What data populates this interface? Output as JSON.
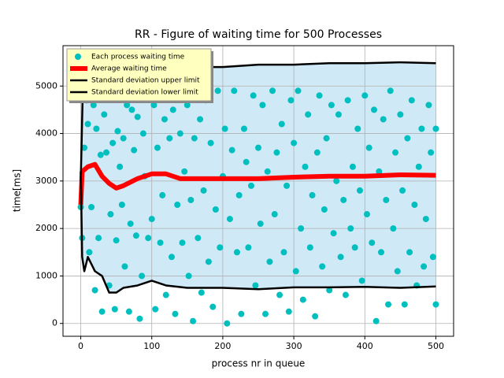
{
  "chart_data": {
    "type": "scatter",
    "title": "RR - Figure of waiting time for 500 Processes",
    "x_label": "process nr in queue",
    "y_label": "time[ms]",
    "xlim": [
      -25,
      525
    ],
    "ylim": [
      -270,
      5850
    ],
    "xticks": [
      0,
      100,
      200,
      300,
      400,
      500
    ],
    "yticks": [
      0,
      1000,
      2000,
      3000,
      4000,
      5000
    ],
    "grid": true,
    "legend": "upper left",
    "fill_color": "#cfe9f6",
    "series": [
      {
        "name": "Each process waiting time",
        "type": "scatter",
        "color": "#00bfbf",
        "x": [
          0,
          2,
          5,
          8,
          10,
          12,
          15,
          18,
          20,
          22,
          25,
          28,
          30,
          33,
          36,
          40,
          42,
          45,
          48,
          50,
          52,
          55,
          58,
          60,
          62,
          65,
          68,
          70,
          72,
          75,
          78,
          80,
          83,
          86,
          88,
          90,
          95,
          100,
          103,
          105,
          108,
          110,
          112,
          115,
          118,
          120,
          125,
          128,
          130,
          133,
          136,
          140,
          143,
          146,
          150,
          152,
          155,
          158,
          160,
          165,
          168,
          170,
          173,
          176,
          180,
          183,
          186,
          190,
          193,
          196,
          200,
          203,
          206,
          210,
          213,
          216,
          220,
          223,
          226,
          230,
          233,
          236,
          240,
          243,
          246,
          250,
          253,
          256,
          260,
          263,
          266,
          270,
          273,
          276,
          280,
          283,
          286,
          290,
          293,
          296,
          300,
          303,
          306,
          310,
          313,
          316,
          320,
          323,
          326,
          330,
          333,
          336,
          340,
          343,
          346,
          350,
          353,
          356,
          360,
          363,
          366,
          370,
          373,
          376,
          380,
          383,
          386,
          390,
          393,
          396,
          400,
          403,
          406,
          410,
          413,
          416,
          420,
          423,
          426,
          430,
          433,
          436,
          440,
          443,
          446,
          450,
          453,
          456,
          460,
          463,
          466,
          470,
          473,
          476,
          480,
          483,
          486,
          490,
          493,
          496,
          500,
          500
        ],
        "values": [
          2450,
          1800,
          3700,
          4700,
          4200,
          1500,
          2450,
          4600,
          700,
          4100,
          1800,
          3550,
          250,
          4400,
          3600,
          800,
          2300,
          3800,
          300,
          1750,
          4050,
          3300,
          2500,
          3900,
          1200,
          4600,
          250,
          2100,
          4500,
          3650,
          1850,
          4350,
          100,
          1000,
          4000,
          3100,
          1800,
          2200,
          4600,
          300,
          3700,
          4900,
          1700,
          2700,
          4300,
          600,
          3900,
          1400,
          4500,
          200,
          2500,
          4000,
          1700,
          3200,
          4600,
          1000,
          2600,
          50,
          3900,
          1800,
          4300,
          650,
          2800,
          4700,
          1300,
          3800,
          350,
          2400,
          4900,
          1600,
          3100,
          4100,
          0,
          2200,
          3650,
          4900,
          1500,
          2700,
          200,
          4100,
          3400,
          1600,
          2900,
          4800,
          800,
          3700,
          2100,
          4600,
          200,
          3200,
          1300,
          4900,
          2300,
          3600,
          600,
          4200,
          1500,
          2900,
          250,
          4700,
          3800,
          1100,
          4900,
          2000,
          500,
          3300,
          4400,
          1600,
          2700,
          150,
          3600,
          4800,
          1200,
          2400,
          3900,
          700,
          4600,
          1900,
          3000,
          4400,
          1400,
          2600,
          600,
          4700,
          2000,
          3300,
          1600,
          4100,
          2800,
          900,
          4800,
          2300,
          3700,
          1700,
          4500,
          50,
          3200,
          1500,
          4300,
          2600,
          400,
          4900,
          2000,
          3600,
          1100,
          4400,
          2800,
          400,
          3900,
          1500,
          4700,
          2500,
          800,
          3300,
          4100,
          1200,
          2200,
          4600,
          3600,
          1400,
          400,
          4100
        ]
      },
      {
        "name": "Average waiting time",
        "type": "line",
        "color": "#ff0000",
        "x": [
          0,
          2,
          10,
          20,
          30,
          40,
          50,
          60,
          80,
          100,
          120,
          140,
          160,
          200,
          250,
          300,
          350,
          400,
          450,
          500
        ],
        "values": [
          2500,
          3200,
          3300,
          3350,
          3100,
          2950,
          2850,
          2900,
          3050,
          3150,
          3150,
          3050,
          3050,
          3050,
          3050,
          3080,
          3100,
          3100,
          3130,
          3120
        ]
      },
      {
        "name": "Standard deviation upper limit",
        "type": "line",
        "color": "#000000",
        "x": [
          0,
          3,
          5,
          20,
          50,
          100,
          150,
          200,
          250,
          300,
          350,
          400,
          450,
          500
        ],
        "values": [
          3000,
          5000,
          5300,
          5300,
          5350,
          5300,
          5400,
          5400,
          5450,
          5450,
          5480,
          5480,
          5500,
          5480
        ]
      },
      {
        "name": "Standard deviation lower limit",
        "type": "line",
        "color": "#000000",
        "x": [
          0,
          2,
          5,
          10,
          20,
          30,
          40,
          50,
          60,
          80,
          100,
          120,
          150,
          200,
          250,
          300,
          350,
          400,
          450,
          500
        ],
        "values": [
          3200,
          1400,
          1100,
          1400,
          1100,
          1000,
          650,
          650,
          750,
          800,
          900,
          800,
          750,
          750,
          720,
          760,
          760,
          770,
          750,
          780
        ]
      }
    ]
  }
}
